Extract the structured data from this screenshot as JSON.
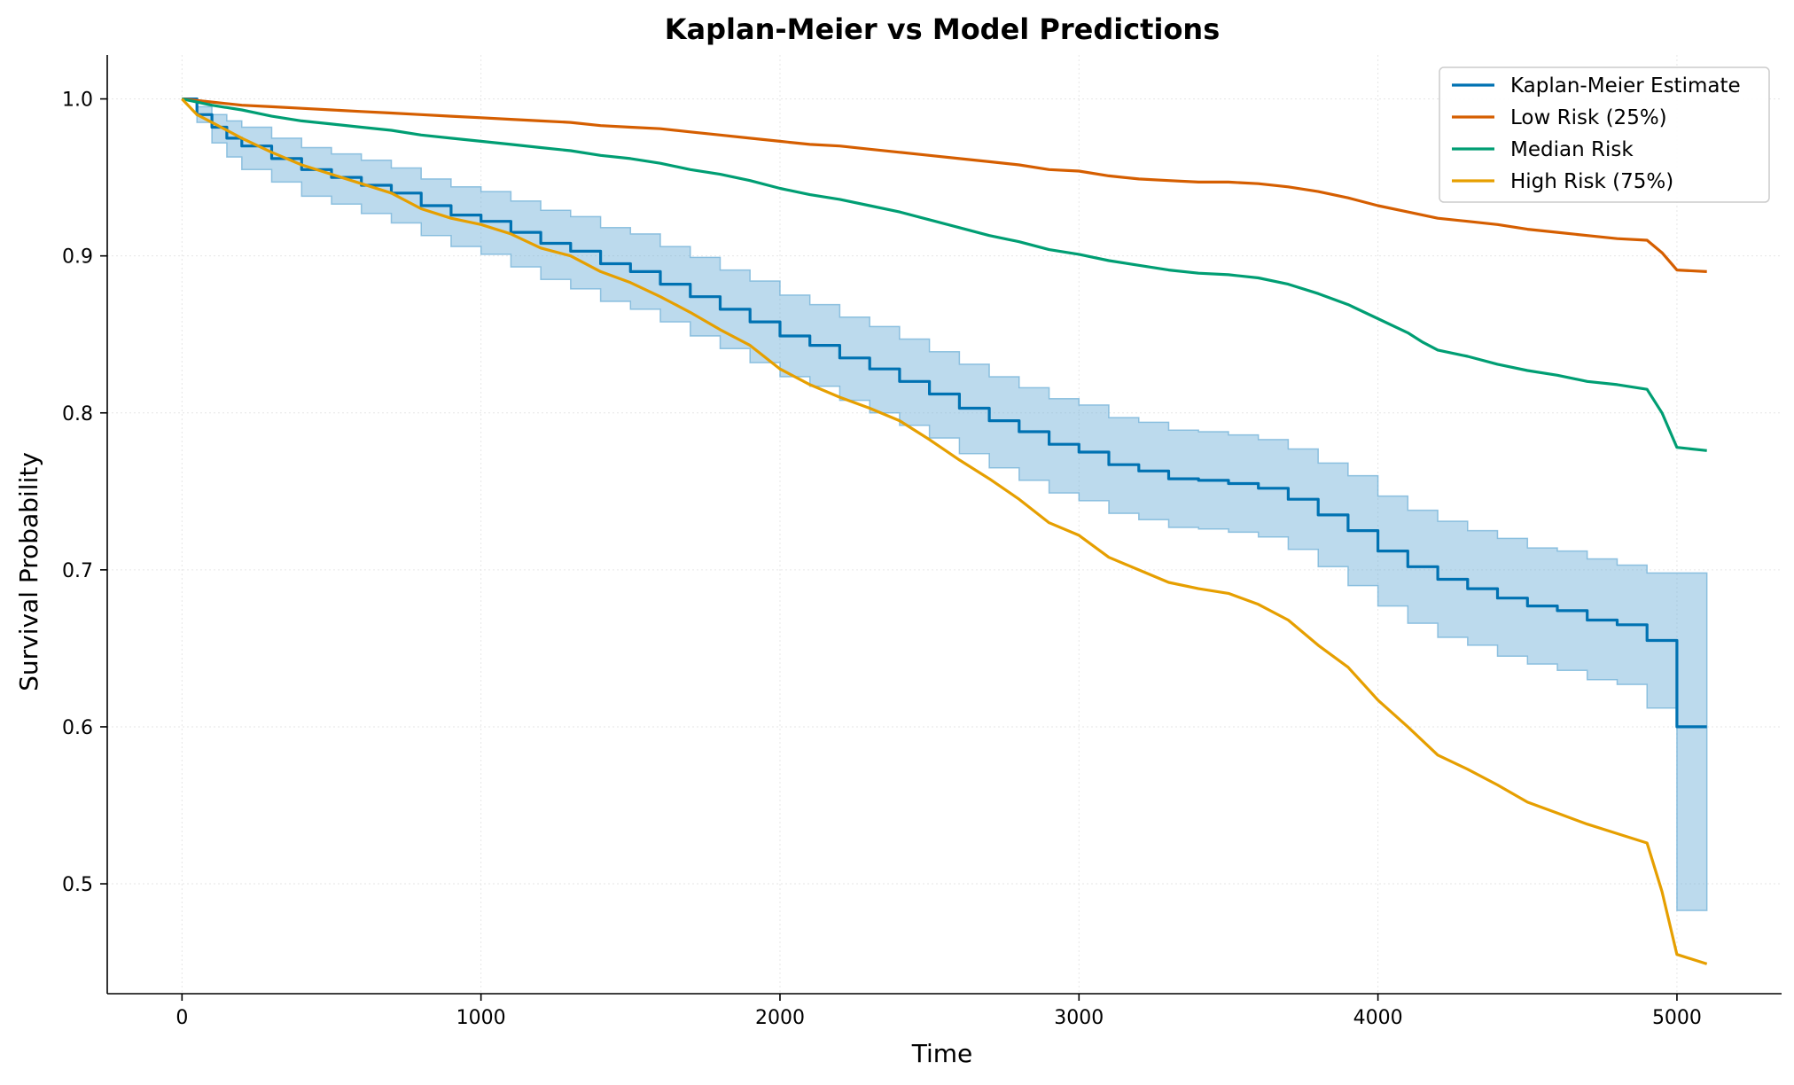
{
  "chart_data": {
    "type": "line",
    "title": "Kaplan-Meier vs Model Predictions",
    "xlabel": "Time",
    "ylabel": "Survival Probability",
    "xlim": [
      -250,
      5350
    ],
    "ylim": [
      0.43,
      1.028
    ],
    "x_ticks": [
      0,
      1000,
      2000,
      3000,
      4000,
      5000
    ],
    "x_tick_labels": [
      "0",
      "1000",
      "2000",
      "3000",
      "4000",
      "5000"
    ],
    "y_ticks": [
      0.5,
      0.6,
      0.7,
      0.8,
      0.9,
      1.0
    ],
    "y_tick_labels": [
      "0.5",
      "0.6",
      "0.7",
      "0.8",
      "0.9",
      "1.0"
    ],
    "grid": true,
    "legend_position": "top-right",
    "series": [
      {
        "name": "Kaplan-Meier Estimate",
        "color": "#0072b2",
        "style": "step",
        "x": [
          0,
          50,
          100,
          150,
          200,
          300,
          400,
          500,
          600,
          700,
          800,
          900,
          1000,
          1100,
          1200,
          1300,
          1400,
          1500,
          1600,
          1700,
          1800,
          1900,
          2000,
          2100,
          2200,
          2300,
          2400,
          2500,
          2600,
          2700,
          2800,
          2900,
          3000,
          3100,
          3200,
          3300,
          3400,
          3500,
          3600,
          3700,
          3800,
          3900,
          4000,
          4100,
          4200,
          4300,
          4400,
          4500,
          4600,
          4700,
          4800,
          4900,
          5000,
          5100
        ],
        "values": [
          1.0,
          0.99,
          0.982,
          0.975,
          0.97,
          0.962,
          0.955,
          0.95,
          0.945,
          0.94,
          0.932,
          0.926,
          0.922,
          0.915,
          0.908,
          0.903,
          0.895,
          0.89,
          0.882,
          0.874,
          0.866,
          0.858,
          0.849,
          0.843,
          0.835,
          0.828,
          0.82,
          0.812,
          0.803,
          0.795,
          0.788,
          0.78,
          0.775,
          0.767,
          0.763,
          0.758,
          0.757,
          0.755,
          0.752,
          0.745,
          0.735,
          0.725,
          0.712,
          0.702,
          0.694,
          0.688,
          0.682,
          0.677,
          0.674,
          0.668,
          0.665,
          0.655,
          0.6,
          0.6
        ]
      },
      {
        "name": "Low Risk (25%)",
        "color": "#d55e00",
        "style": "line",
        "x": [
          0,
          100,
          200,
          300,
          400,
          500,
          600,
          700,
          800,
          900,
          1000,
          1100,
          1200,
          1300,
          1400,
          1500,
          1600,
          1700,
          1800,
          1900,
          2000,
          2100,
          2200,
          2300,
          2400,
          2500,
          2600,
          2700,
          2800,
          2900,
          3000,
          3100,
          3200,
          3300,
          3400,
          3500,
          3600,
          3700,
          3800,
          3900,
          4000,
          4100,
          4200,
          4300,
          4400,
          4500,
          4600,
          4700,
          4800,
          4900,
          4950,
          5000,
          5100
        ],
        "values": [
          1.0,
          0.998,
          0.996,
          0.995,
          0.994,
          0.993,
          0.992,
          0.991,
          0.99,
          0.989,
          0.988,
          0.987,
          0.986,
          0.985,
          0.983,
          0.982,
          0.981,
          0.979,
          0.977,
          0.975,
          0.973,
          0.971,
          0.97,
          0.968,
          0.966,
          0.964,
          0.962,
          0.96,
          0.958,
          0.955,
          0.954,
          0.951,
          0.949,
          0.948,
          0.947,
          0.947,
          0.946,
          0.944,
          0.941,
          0.937,
          0.932,
          0.928,
          0.924,
          0.922,
          0.92,
          0.917,
          0.915,
          0.913,
          0.911,
          0.91,
          0.902,
          0.891,
          0.89
        ]
      },
      {
        "name": "Median Risk",
        "color": "#009e73",
        "style": "line",
        "x": [
          0,
          100,
          200,
          300,
          400,
          500,
          600,
          700,
          800,
          900,
          1000,
          1100,
          1200,
          1300,
          1400,
          1500,
          1600,
          1700,
          1800,
          1900,
          2000,
          2100,
          2200,
          2300,
          2400,
          2500,
          2600,
          2700,
          2800,
          2900,
          3000,
          3100,
          3200,
          3300,
          3400,
          3500,
          3600,
          3700,
          3800,
          3900,
          4000,
          4100,
          4150,
          4200,
          4300,
          4400,
          4500,
          4600,
          4700,
          4800,
          4900,
          4950,
          5000,
          5100
        ],
        "values": [
          1.0,
          0.996,
          0.993,
          0.989,
          0.986,
          0.984,
          0.982,
          0.98,
          0.977,
          0.975,
          0.973,
          0.971,
          0.969,
          0.967,
          0.964,
          0.962,
          0.959,
          0.955,
          0.952,
          0.948,
          0.943,
          0.939,
          0.936,
          0.932,
          0.928,
          0.923,
          0.918,
          0.913,
          0.909,
          0.904,
          0.901,
          0.897,
          0.894,
          0.891,
          0.889,
          0.888,
          0.886,
          0.882,
          0.876,
          0.869,
          0.86,
          0.851,
          0.845,
          0.84,
          0.836,
          0.831,
          0.827,
          0.824,
          0.82,
          0.818,
          0.815,
          0.8,
          0.778,
          0.776
        ]
      },
      {
        "name": "High Risk (75%)",
        "color": "#e69f00",
        "style": "line",
        "x": [
          0,
          50,
          100,
          200,
          300,
          400,
          500,
          600,
          700,
          800,
          900,
          1000,
          1100,
          1200,
          1300,
          1400,
          1500,
          1600,
          1700,
          1800,
          1900,
          2000,
          2100,
          2200,
          2300,
          2400,
          2500,
          2600,
          2700,
          2800,
          2900,
          3000,
          3100,
          3200,
          3300,
          3400,
          3500,
          3600,
          3700,
          3800,
          3900,
          4000,
          4100,
          4200,
          4300,
          4400,
          4500,
          4600,
          4700,
          4800,
          4900,
          4950,
          5000,
          5100
        ],
        "values": [
          1.0,
          0.99,
          0.985,
          0.975,
          0.966,
          0.958,
          0.952,
          0.946,
          0.94,
          0.93,
          0.924,
          0.92,
          0.914,
          0.905,
          0.9,
          0.89,
          0.883,
          0.874,
          0.864,
          0.853,
          0.843,
          0.828,
          0.818,
          0.81,
          0.803,
          0.795,
          0.783,
          0.77,
          0.758,
          0.745,
          0.73,
          0.722,
          0.708,
          0.7,
          0.692,
          0.688,
          0.685,
          0.678,
          0.668,
          0.652,
          0.638,
          0.617,
          0.6,
          0.582,
          0.573,
          0.563,
          0.552,
          0.545,
          0.538,
          0.532,
          0.526,
          0.495,
          0.455,
          0.449
        ]
      }
    ],
    "confidence_band": {
      "series": "Kaplan-Meier Estimate",
      "color": "#6baed6",
      "x": [
        0,
        50,
        100,
        150,
        200,
        300,
        400,
        500,
        600,
        700,
        800,
        900,
        1000,
        1100,
        1200,
        1300,
        1400,
        1500,
        1600,
        1700,
        1800,
        1900,
        2000,
        2100,
        2200,
        2300,
        2400,
        2500,
        2600,
        2700,
        2800,
        2900,
        3000,
        3100,
        3200,
        3300,
        3400,
        3500,
        3600,
        3700,
        3800,
        3900,
        4000,
        4100,
        4200,
        4300,
        4400,
        4500,
        4600,
        4700,
        4800,
        4900,
        5000,
        5100
      ],
      "lower": [
        1.0,
        0.985,
        0.972,
        0.963,
        0.955,
        0.947,
        0.938,
        0.933,
        0.927,
        0.921,
        0.913,
        0.906,
        0.901,
        0.893,
        0.885,
        0.879,
        0.871,
        0.866,
        0.858,
        0.849,
        0.841,
        0.832,
        0.823,
        0.817,
        0.808,
        0.8,
        0.792,
        0.784,
        0.774,
        0.765,
        0.757,
        0.749,
        0.744,
        0.736,
        0.732,
        0.727,
        0.726,
        0.724,
        0.721,
        0.713,
        0.702,
        0.69,
        0.677,
        0.666,
        0.657,
        0.652,
        0.645,
        0.64,
        0.636,
        0.63,
        0.627,
        0.612,
        0.483,
        0.483
      ],
      "upper": [
        1.0,
        0.995,
        0.99,
        0.986,
        0.982,
        0.975,
        0.969,
        0.965,
        0.961,
        0.956,
        0.949,
        0.944,
        0.941,
        0.935,
        0.929,
        0.925,
        0.918,
        0.914,
        0.906,
        0.899,
        0.891,
        0.884,
        0.875,
        0.869,
        0.861,
        0.855,
        0.847,
        0.839,
        0.831,
        0.823,
        0.816,
        0.809,
        0.805,
        0.797,
        0.794,
        0.789,
        0.788,
        0.786,
        0.783,
        0.777,
        0.768,
        0.76,
        0.747,
        0.738,
        0.731,
        0.725,
        0.72,
        0.714,
        0.712,
        0.707,
        0.703,
        0.698,
        0.698,
        0.698
      ]
    }
  }
}
